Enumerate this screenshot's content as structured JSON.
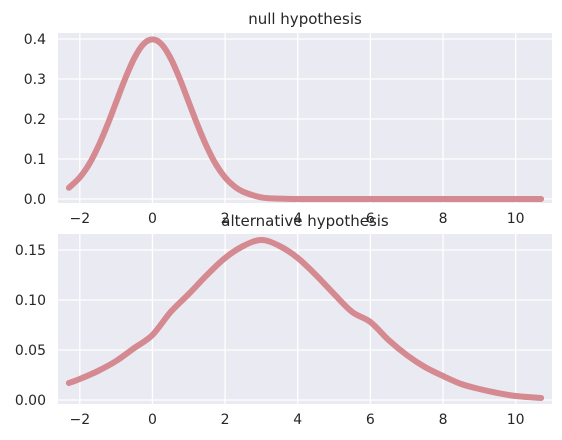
{
  "chart_data": [
    {
      "type": "line",
      "title": "null hypothesis",
      "xlabel": "",
      "ylabel": "",
      "xlim": [
        -2.6,
        11.0
      ],
      "ylim": [
        -0.01,
        0.415
      ],
      "xticks": [
        -2,
        0,
        2,
        4,
        6,
        8,
        10
      ],
      "xtick_labels": [
        "−2",
        "0",
        "2",
        "4",
        "6",
        "8",
        "10"
      ],
      "yticks": [
        0.0,
        0.1,
        0.2,
        0.3,
        0.4
      ],
      "ytick_labels": [
        "0.0",
        "0.1",
        "0.2",
        "0.3",
        "0.4"
      ],
      "grid": true,
      "series": [
        {
          "color": "#d48a90",
          "x": [
            -2.3,
            -2.0,
            -1.75,
            -1.5,
            -1.25,
            -1.0,
            -0.75,
            -0.5,
            -0.25,
            0.0,
            0.25,
            0.5,
            0.75,
            1.0,
            1.25,
            1.5,
            1.75,
            2.0,
            2.25,
            2.5,
            3.0,
            3.5,
            4.0,
            5.0,
            6.0,
            7.0,
            8.0,
            9.0,
            10.0,
            10.7
          ],
          "y": [
            0.028,
            0.054,
            0.086,
            0.13,
            0.183,
            0.242,
            0.301,
            0.352,
            0.387,
            0.399,
            0.387,
            0.352,
            0.301,
            0.242,
            0.183,
            0.13,
            0.086,
            0.054,
            0.032,
            0.018,
            0.004,
            0.001,
            0.0,
            0.0,
            0.0,
            0.0,
            0.0,
            0.0,
            0.0,
            0.0
          ]
        }
      ]
    },
    {
      "type": "line",
      "title": "alternative hypothesis",
      "xlabel": "",
      "ylabel": "",
      "xlim": [
        -2.6,
        11.0
      ],
      "ylim": [
        -0.004,
        0.166
      ],
      "xticks": [
        -2,
        0,
        2,
        4,
        6,
        8,
        10
      ],
      "xtick_labels": [
        "−2",
        "0",
        "2",
        "4",
        "6",
        "8",
        "10"
      ],
      "yticks": [
        0.0,
        0.05,
        0.1,
        0.15
      ],
      "ytick_labels": [
        "0.00",
        "0.05",
        "0.10",
        "0.15"
      ],
      "grid": true,
      "series": [
        {
          "color": "#d48a90",
          "x": [
            -2.3,
            -2.0,
            -1.5,
            -1.0,
            -0.5,
            0.0,
            0.5,
            1.0,
            1.5,
            2.0,
            2.5,
            3.0,
            3.5,
            4.0,
            4.5,
            5.0,
            5.5,
            6.0,
            6.5,
            7.0,
            7.5,
            8.0,
            8.5,
            9.0,
            9.5,
            10.0,
            10.7
          ],
          "y": [
            0.017,
            0.021,
            0.029,
            0.039,
            0.052,
            0.065,
            0.088,
            0.106,
            0.125,
            0.142,
            0.154,
            0.16,
            0.154,
            0.142,
            0.125,
            0.106,
            0.088,
            0.078,
            0.06,
            0.045,
            0.033,
            0.024,
            0.016,
            0.011,
            0.007,
            0.004,
            0.002
          ]
        }
      ]
    }
  ]
}
